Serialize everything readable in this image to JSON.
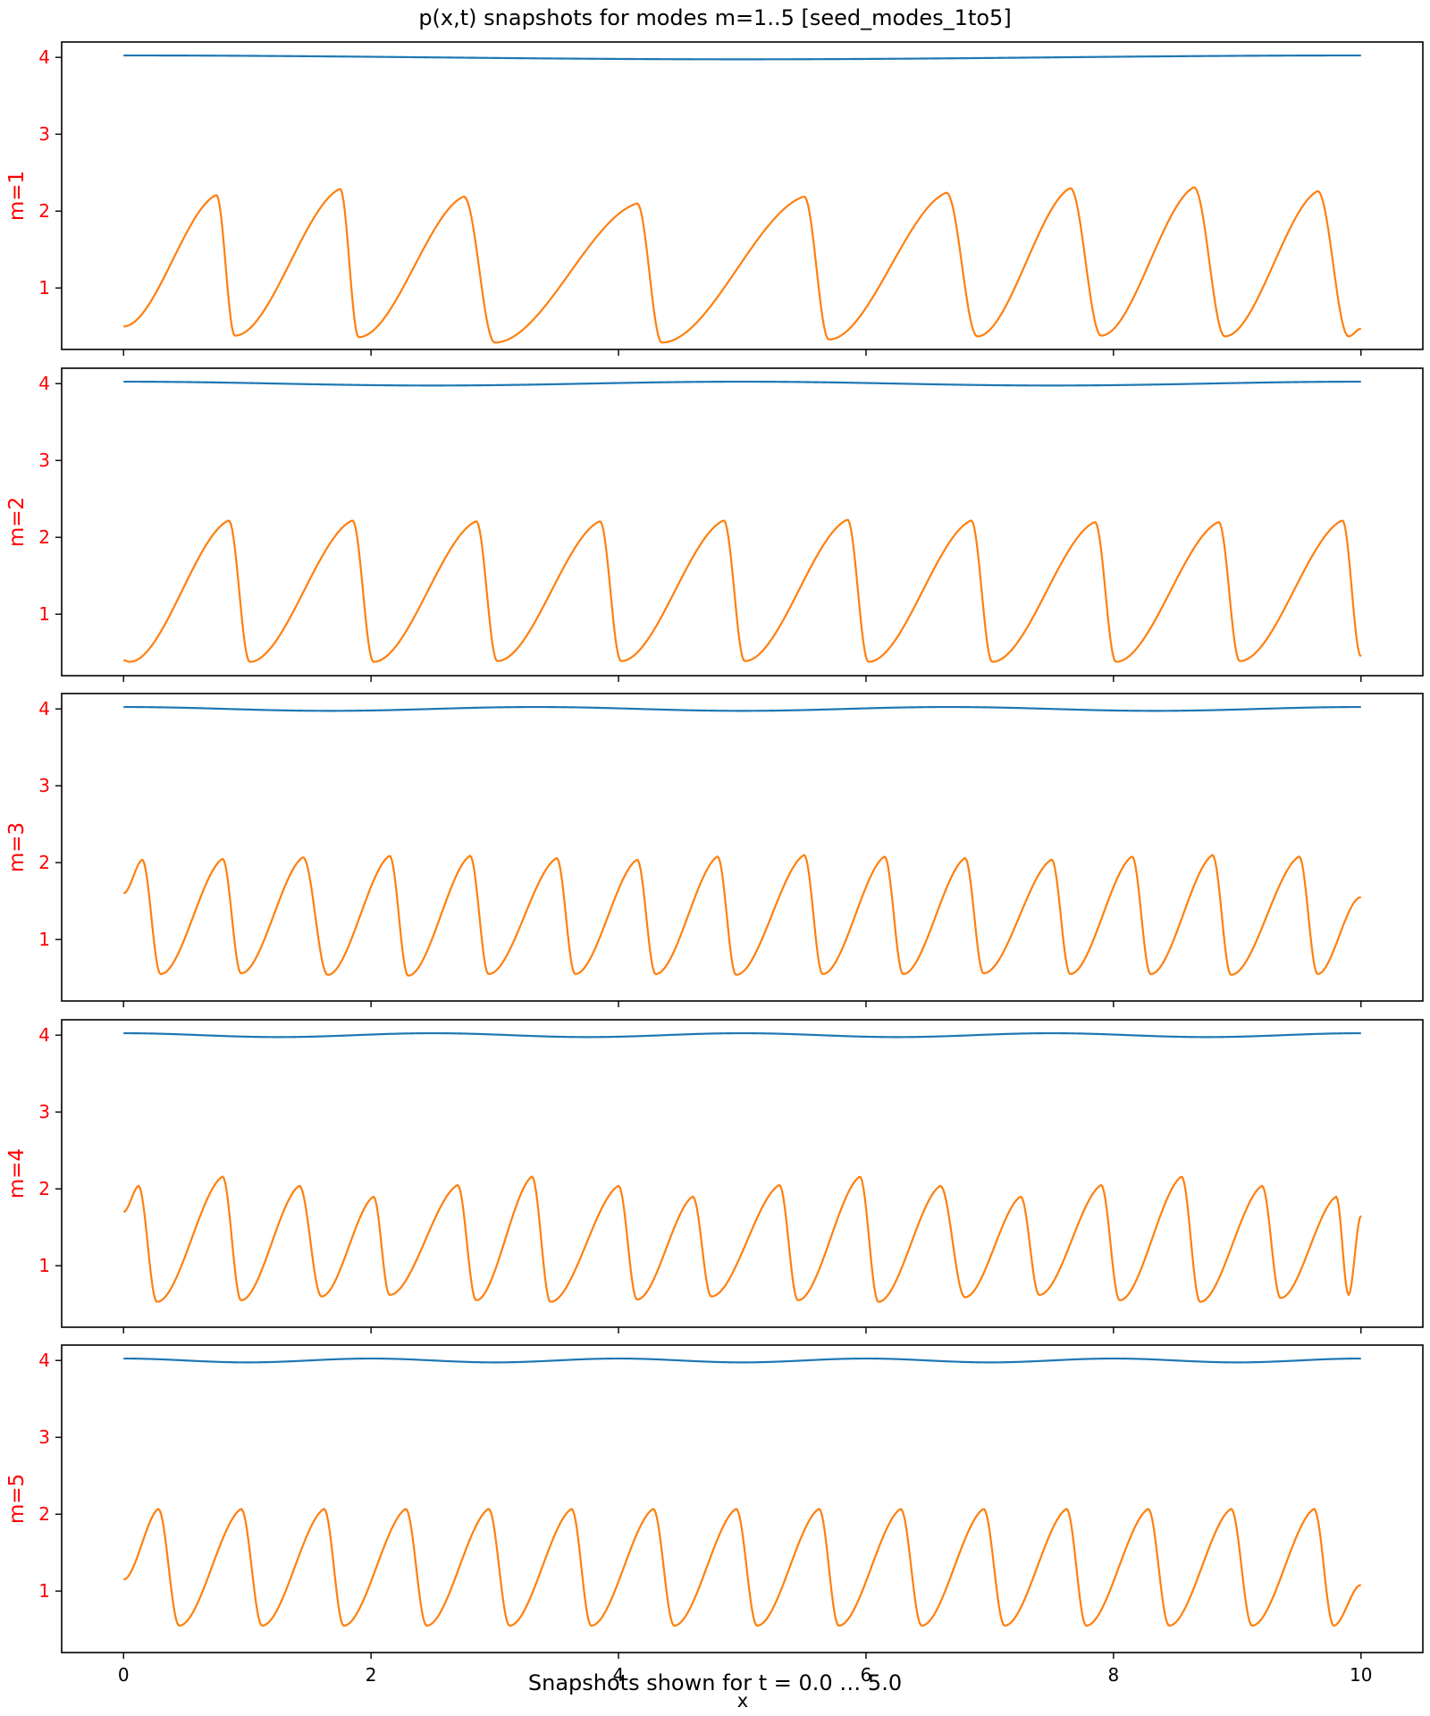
{
  "figure": {
    "title": "p(x,t) snapshots for modes m=1..5  [seed_modes_1to5]",
    "footer": "Snapshots shown for t = 0.0 … 5.0",
    "shared_xlabel": "x"
  },
  "colors": {
    "series_1": "#1f77b4",
    "series_2": "#ff7f0e",
    "ylabel": "#ff0000",
    "axes": "#000000"
  },
  "chart_data": [
    {
      "type": "line",
      "ylabel": "m=1",
      "xlim": [
        -0.5,
        10.5
      ],
      "ylim": [
        0.2,
        4.2
      ],
      "xticks": [
        0,
        2,
        4,
        6,
        8,
        10
      ],
      "yticks": [
        1,
        2,
        3,
        4
      ],
      "show_xtick_labels": false,
      "series": [
        {
          "kind": "flat",
          "base": 4.0,
          "amp": 0.025,
          "periods": 1
        },
        {
          "kind": "sawtooth",
          "start": 0.5,
          "end": 0.47,
          "peaks": [
            [
              0.75,
              2.21
            ],
            [
              1.75,
              2.29
            ],
            [
              2.75,
              2.19
            ],
            [
              4.15,
              2.1
            ],
            [
              5.5,
              2.19
            ],
            [
              6.65,
              2.24
            ],
            [
              7.65,
              2.3
            ],
            [
              8.65,
              2.31
            ],
            [
              9.65,
              2.26
            ]
          ],
          "troughs": [
            [
              0.9,
              0.38
            ],
            [
              1.9,
              0.36
            ],
            [
              3.0,
              0.29
            ],
            [
              4.35,
              0.29
            ],
            [
              5.7,
              0.33
            ],
            [
              6.9,
              0.37
            ],
            [
              7.9,
              0.38
            ],
            [
              8.9,
              0.37
            ],
            [
              9.9,
              0.37
            ]
          ]
        }
      ]
    },
    {
      "type": "line",
      "ylabel": "m=2",
      "xlim": [
        -0.5,
        10.5
      ],
      "ylim": [
        0.2,
        4.2
      ],
      "xticks": [
        0,
        2,
        4,
        6,
        8,
        10
      ],
      "yticks": [
        1,
        2,
        3,
        4
      ],
      "show_xtick_labels": false,
      "series": [
        {
          "kind": "flat",
          "base": 4.0,
          "amp": 0.025,
          "periods": 2
        },
        {
          "kind": "sawtooth",
          "start": 0.4,
          "end": 0.45,
          "peaks": [
            [
              0.85,
              2.22
            ],
            [
              1.85,
              2.22
            ],
            [
              2.85,
              2.21
            ],
            [
              3.85,
              2.21
            ],
            [
              4.85,
              2.22
            ],
            [
              5.85,
              2.23
            ],
            [
              6.85,
              2.22
            ],
            [
              7.85,
              2.2
            ],
            [
              8.85,
              2.2
            ],
            [
              9.85,
              2.22
            ]
          ],
          "troughs": [
            [
              0.05,
              0.38
            ],
            [
              1.02,
              0.38
            ],
            [
              2.02,
              0.38
            ],
            [
              3.02,
              0.39
            ],
            [
              4.02,
              0.39
            ],
            [
              5.02,
              0.39
            ],
            [
              6.02,
              0.38
            ],
            [
              7.02,
              0.38
            ],
            [
              8.02,
              0.38
            ],
            [
              9.02,
              0.39
            ]
          ]
        }
      ]
    },
    {
      "type": "line",
      "ylabel": "m=3",
      "xlim": [
        -0.5,
        10.5
      ],
      "ylim": [
        0.2,
        4.2
      ],
      "xticks": [
        0,
        2,
        4,
        6,
        8,
        10
      ],
      "yticks": [
        1,
        2,
        3,
        4
      ],
      "show_xtick_labels": false,
      "series": [
        {
          "kind": "flat",
          "base": 4.0,
          "amp": 0.025,
          "periods": 3
        },
        {
          "kind": "sawtooth",
          "start": 1.6,
          "end": 1.55,
          "peaks": [
            [
              0.15,
              2.04
            ],
            [
              0.8,
              2.05
            ],
            [
              1.45,
              2.07
            ],
            [
              2.15,
              2.09
            ],
            [
              2.8,
              2.09
            ],
            [
              3.5,
              2.06
            ],
            [
              4.15,
              2.04
            ],
            [
              4.8,
              2.08
            ],
            [
              5.5,
              2.1
            ],
            [
              6.15,
              2.08
            ],
            [
              6.8,
              2.06
            ],
            [
              7.5,
              2.04
            ],
            [
              8.15,
              2.08
            ],
            [
              8.8,
              2.1
            ],
            [
              9.5,
              2.08
            ]
          ],
          "troughs": [
            [
              0.3,
              0.55
            ],
            [
              0.95,
              0.56
            ],
            [
              1.65,
              0.54
            ],
            [
              2.3,
              0.53
            ],
            [
              2.95,
              0.55
            ],
            [
              3.65,
              0.55
            ],
            [
              4.3,
              0.55
            ],
            [
              4.95,
              0.54
            ],
            [
              5.65,
              0.55
            ],
            [
              6.3,
              0.55
            ],
            [
              6.95,
              0.56
            ],
            [
              7.65,
              0.55
            ],
            [
              8.3,
              0.55
            ],
            [
              8.95,
              0.54
            ],
            [
              9.65,
              0.55
            ]
          ]
        }
      ]
    },
    {
      "type": "line",
      "ylabel": "m=4",
      "xlim": [
        -0.5,
        10.5
      ],
      "ylim": [
        0.2,
        4.2
      ],
      "xticks": [
        0,
        2,
        4,
        6,
        8,
        10
      ],
      "yticks": [
        1,
        2,
        3,
        4
      ],
      "show_xtick_labels": false,
      "series": [
        {
          "kind": "flat",
          "base": 4.0,
          "amp": 0.025,
          "periods": 4
        },
        {
          "kind": "sawtooth",
          "start": 1.7,
          "end": 1.65,
          "peaks": [
            [
              0.12,
              2.04
            ],
            [
              0.8,
              2.16
            ],
            [
              1.42,
              2.04
            ],
            [
              2.02,
              1.9
            ],
            [
              2.7,
              2.05
            ],
            [
              3.3,
              2.16
            ],
            [
              4.0,
              2.04
            ],
            [
              4.6,
              1.9
            ],
            [
              5.3,
              2.05
            ],
            [
              5.95,
              2.16
            ],
            [
              6.6,
              2.04
            ],
            [
              7.25,
              1.9
            ],
            [
              7.9,
              2.05
            ],
            [
              8.55,
              2.16
            ],
            [
              9.2,
              2.04
            ],
            [
              9.8,
              1.9
            ]
          ],
          "troughs": [
            [
              0.27,
              0.53
            ],
            [
              0.95,
              0.55
            ],
            [
              1.6,
              0.6
            ],
            [
              2.15,
              0.62
            ],
            [
              2.85,
              0.55
            ],
            [
              3.45,
              0.53
            ],
            [
              4.15,
              0.56
            ],
            [
              4.75,
              0.6
            ],
            [
              5.45,
              0.55
            ],
            [
              6.1,
              0.53
            ],
            [
              6.8,
              0.59
            ],
            [
              7.4,
              0.62
            ],
            [
              8.05,
              0.55
            ],
            [
              8.7,
              0.53
            ],
            [
              9.35,
              0.58
            ],
            [
              9.9,
              0.62
            ]
          ]
        }
      ]
    },
    {
      "type": "line",
      "ylabel": "m=5",
      "xlim": [
        -0.5,
        10.5
      ],
      "ylim": [
        0.2,
        4.2
      ],
      "xticks": [
        0,
        2,
        4,
        6,
        8,
        10
      ],
      "yticks": [
        1,
        2,
        3,
        4
      ],
      "xtick_labels": [
        "0",
        "2",
        "4",
        "6",
        "8",
        "10"
      ],
      "show_xtick_labels": true,
      "series": [
        {
          "kind": "flat",
          "base": 4.0,
          "amp": 0.025,
          "periods": 5
        },
        {
          "kind": "sawtooth",
          "start": 1.15,
          "end": 1.08,
          "peaks": [
            [
              0.28,
              2.07
            ],
            [
              0.95,
              2.07
            ],
            [
              1.62,
              2.07
            ],
            [
              2.28,
              2.07
            ],
            [
              2.95,
              2.07
            ],
            [
              3.62,
              2.07
            ],
            [
              4.28,
              2.07
            ],
            [
              4.95,
              2.07
            ],
            [
              5.62,
              2.07
            ],
            [
              6.28,
              2.07
            ],
            [
              6.95,
              2.07
            ],
            [
              7.62,
              2.07
            ],
            [
              8.28,
              2.07
            ],
            [
              8.95,
              2.07
            ],
            [
              9.62,
              2.07
            ]
          ],
          "troughs": [
            [
              0.45,
              0.55
            ],
            [
              1.12,
              0.55
            ],
            [
              1.78,
              0.55
            ],
            [
              2.45,
              0.55
            ],
            [
              3.12,
              0.55
            ],
            [
              3.78,
              0.55
            ],
            [
              4.45,
              0.55
            ],
            [
              5.12,
              0.55
            ],
            [
              5.78,
              0.55
            ],
            [
              6.45,
              0.55
            ],
            [
              7.12,
              0.55
            ],
            [
              7.78,
              0.55
            ],
            [
              8.45,
              0.55
            ],
            [
              9.12,
              0.55
            ],
            [
              9.78,
              0.55
            ]
          ]
        }
      ]
    }
  ]
}
